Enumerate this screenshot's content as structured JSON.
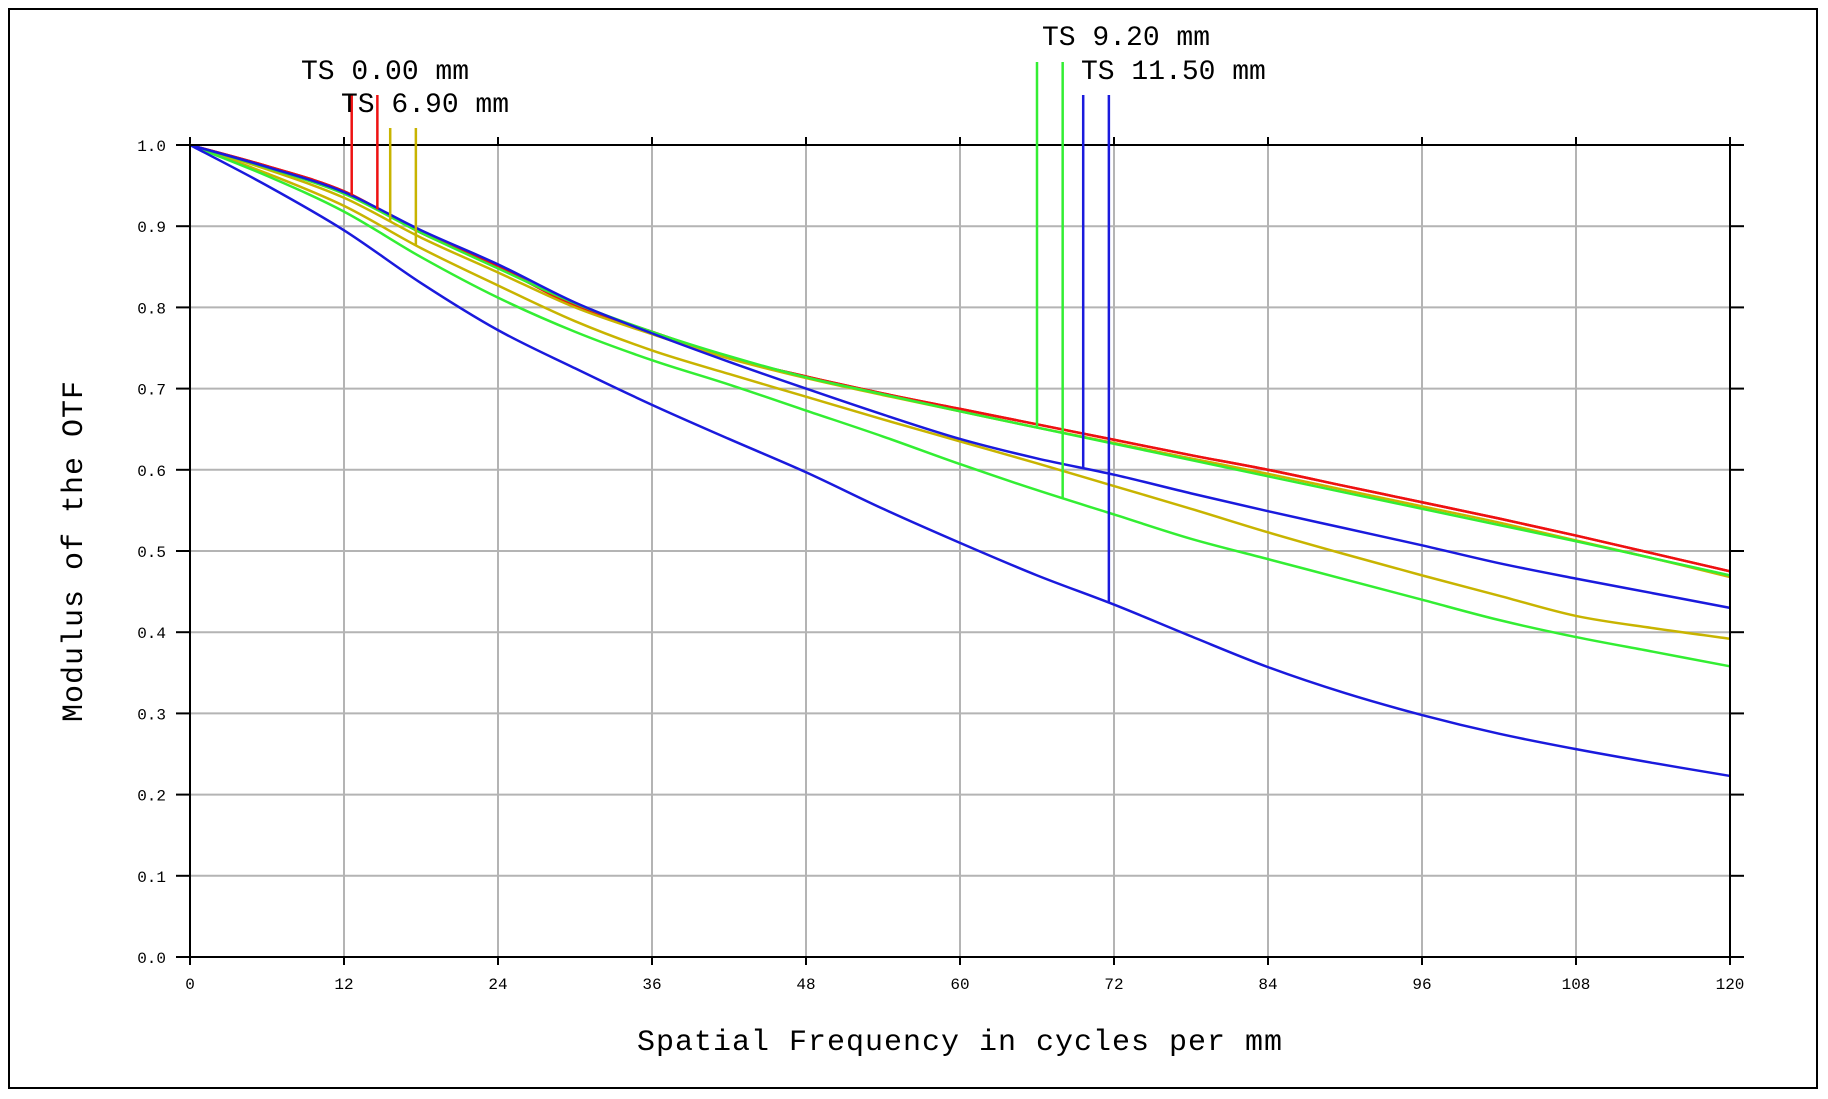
{
  "chart_data": {
    "type": "line",
    "xlabel": "Spatial Frequency in cycles per mm",
    "ylabel": "Modulus of the OTF",
    "xlim": [
      0,
      120
    ],
    "ylim": [
      0,
      1.0
    ],
    "x_ticks": [
      0,
      12,
      24,
      36,
      48,
      60,
      72,
      84,
      96,
      108,
      120
    ],
    "y_ticks": [
      "0.0",
      "0.1",
      "0.2",
      "0.3",
      "0.4",
      "0.5",
      "0.6",
      "0.7",
      "0.8",
      "0.9",
      "1.0"
    ],
    "grid": true,
    "x": [
      0,
      6,
      12,
      18,
      24,
      30,
      36,
      42,
      48,
      54,
      60,
      66,
      72,
      78,
      84,
      90,
      96,
      102,
      108,
      114,
      120
    ],
    "series": [
      {
        "name": "TS 0.00 mm",
        "color": "#ee1111",
        "kind": "T",
        "values": [
          1.0,
          0.974,
          0.943,
          0.892,
          0.85,
          0.802,
          0.77,
          0.738,
          0.715,
          0.694,
          0.675,
          0.656,
          0.637,
          0.618,
          0.6,
          0.58,
          0.56,
          0.54,
          0.519,
          0.497,
          0.475
        ]
      },
      {
        "name": "TS 0.00 mm",
        "color": "#ee1111",
        "kind": "S",
        "values": [
          1.0,
          0.974,
          0.943,
          0.892,
          0.85,
          0.802,
          0.77,
          0.738,
          0.715,
          0.694,
          0.675,
          0.656,
          0.637,
          0.618,
          0.6,
          0.58,
          0.56,
          0.54,
          0.519,
          0.497,
          0.475
        ]
      },
      {
        "name": "TS 6.90 mm",
        "color": "#c8b400",
        "kind": "T",
        "values": [
          1.0,
          0.97,
          0.935,
          0.886,
          0.843,
          0.8,
          0.767,
          0.737,
          0.713,
          0.692,
          0.672,
          0.652,
          0.633,
          0.614,
          0.595,
          0.575,
          0.555,
          0.535,
          0.513,
          0.491,
          0.468
        ]
      },
      {
        "name": "TS 6.90 mm",
        "color": "#c8b400",
        "kind": "S",
        "values": [
          1.0,
          0.965,
          0.925,
          0.873,
          0.827,
          0.783,
          0.747,
          0.718,
          0.69,
          0.662,
          0.635,
          0.608,
          0.58,
          0.552,
          0.523,
          0.496,
          0.47,
          0.445,
          0.42,
          0.405,
          0.392
        ]
      },
      {
        "name": "TS 9.20 mm",
        "color": "#33ee33",
        "kind": "T",
        "values": [
          1.0,
          0.972,
          0.94,
          0.892,
          0.848,
          0.805,
          0.77,
          0.74,
          0.714,
          0.693,
          0.672,
          0.652,
          0.632,
          0.612,
          0.592,
          0.572,
          0.552,
          0.532,
          0.512,
          0.491,
          0.47
        ]
      },
      {
        "name": "TS 9.20 mm",
        "color": "#33ee33",
        "kind": "S",
        "values": [
          1.0,
          0.962,
          0.918,
          0.862,
          0.812,
          0.77,
          0.735,
          0.705,
          0.673,
          0.641,
          0.607,
          0.575,
          0.545,
          0.515,
          0.49,
          0.465,
          0.44,
          0.415,
          0.394,
          0.376,
          0.358
        ]
      },
      {
        "name": "TS 11.50 mm",
        "color": "#1a1add",
        "kind": "T",
        "values": [
          1.0,
          0.973,
          0.942,
          0.895,
          0.853,
          0.806,
          0.768,
          0.733,
          0.7,
          0.668,
          0.638,
          0.614,
          0.594,
          0.571,
          0.549,
          0.528,
          0.507,
          0.485,
          0.466,
          0.448,
          0.43
        ]
      },
      {
        "name": "TS 11.50 mm",
        "color": "#1a1add",
        "kind": "S",
        "values": [
          1.0,
          0.95,
          0.895,
          0.83,
          0.772,
          0.725,
          0.68,
          0.638,
          0.597,
          0.552,
          0.51,
          0.47,
          0.434,
          0.395,
          0.357,
          0.325,
          0.298,
          0.275,
          0.256,
          0.239,
          0.223
        ]
      }
    ],
    "legend": [
      {
        "label": "TS 0.00 mm",
        "color": "#ee1111"
      },
      {
        "label": "TS 6.90 mm",
        "color": "#c8b400"
      },
      {
        "label": "TS 9.20 mm",
        "color": "#33ee33"
      },
      {
        "label": "TS 11.50 mm",
        "color": "#1a1add"
      }
    ],
    "legend_placement": "top, above plot area",
    "grid_color": "#b4b4b4"
  }
}
